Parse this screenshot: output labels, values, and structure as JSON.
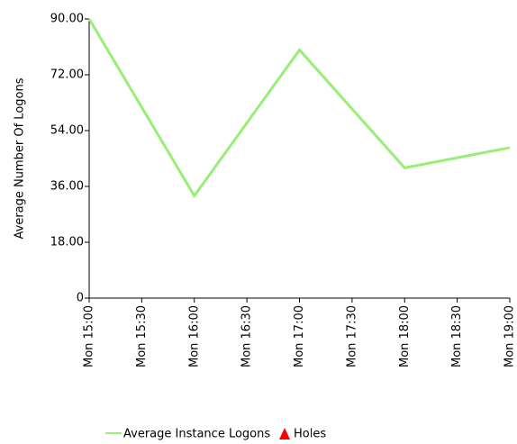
{
  "chart_data": {
    "type": "line",
    "ylabel": "Average Number Of Logons",
    "categories": [
      "Mon 15:00",
      "Mon 15:30",
      "Mon 16:00",
      "Mon 16:30",
      "Mon 17:00",
      "Mon 17:30",
      "Mon 18:00",
      "Mon 18:30",
      "Mon 19:00"
    ],
    "series": [
      {
        "name": "Average Instance Logons",
        "color": "#99ee77",
        "x": [
          "Mon 15:00",
          "Mon 16:00",
          "Mon 17:00",
          "Mon 18:00",
          "Mon 19:00"
        ],
        "values": [
          90,
          33,
          80,
          42,
          48.5
        ]
      }
    ],
    "holes_legend": {
      "name": "Holes",
      "color": "#ff0000"
    },
    "ylim": [
      0,
      90
    ],
    "yticks": [
      0,
      {
        "value": 18,
        "label": "18.00"
      },
      {
        "value": 36,
        "label": "36.00"
      },
      {
        "value": 54,
        "label": "54.00"
      },
      {
        "value": 72,
        "label": "72.00"
      },
      {
        "value": 90,
        "label": "90.00"
      }
    ]
  }
}
